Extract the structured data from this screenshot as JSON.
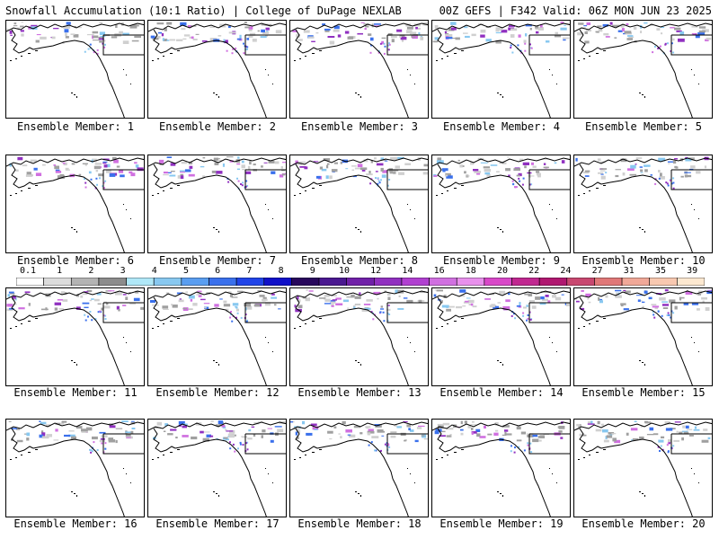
{
  "header": {
    "title_left": "Snowfall Accumulation (10:1 Ratio) | College of DuPage NEXLAB",
    "title_right": "00Z GEFS | F342 Valid: 06Z MON JUN 23 2025"
  },
  "members": [
    {
      "label": "Ensemble Member: 1"
    },
    {
      "label": "Ensemble Member: 2"
    },
    {
      "label": "Ensemble Member: 3"
    },
    {
      "label": "Ensemble Member: 4"
    },
    {
      "label": "Ensemble Member: 5"
    },
    {
      "label": "Ensemble Member: 6"
    },
    {
      "label": "Ensemble Member: 7"
    },
    {
      "label": "Ensemble Member: 8"
    },
    {
      "label": "Ensemble Member: 9"
    },
    {
      "label": "Ensemble Member: 10"
    },
    {
      "label": "Ensemble Member: 11"
    },
    {
      "label": "Ensemble Member: 12"
    },
    {
      "label": "Ensemble Member: 13"
    },
    {
      "label": "Ensemble Member: 14"
    },
    {
      "label": "Ensemble Member: 15"
    },
    {
      "label": "Ensemble Member: 16"
    },
    {
      "label": "Ensemble Member: 17"
    },
    {
      "label": "Ensemble Member: 18"
    },
    {
      "label": "Ensemble Member: 19"
    },
    {
      "label": "Ensemble Member: 20"
    }
  ],
  "legend": {
    "ticks": [
      "0.1",
      "1",
      "2",
      "3",
      "4",
      "5",
      "6",
      "7",
      "8",
      "9",
      "10",
      "12",
      "14",
      "16",
      "18",
      "20",
      "22",
      "24",
      "27",
      "31",
      "35",
      "39"
    ],
    "colors": [
      "#ffffff",
      "#dcdcdc",
      "#b4b4b4",
      "#8c8c8c",
      "#b0e8f8",
      "#88c8f0",
      "#5a9ef0",
      "#3a70ec",
      "#2044e8",
      "#1010c8",
      "#28085c",
      "#4a1890",
      "#7020a8",
      "#9030c0",
      "#b040d0",
      "#d070e0",
      "#e890ec",
      "#d848c8",
      "#c02890",
      "#b01870",
      "#c84870",
      "#e07878",
      "#f0a898",
      "#f8c8b0",
      "#fce8d0"
    ]
  },
  "map": {
    "snow_colors": [
      "#d0d0d0",
      "#a0a0a0",
      "#88c8f0",
      "#3a70ec",
      "#9030c0",
      "#d070e0"
    ]
  }
}
